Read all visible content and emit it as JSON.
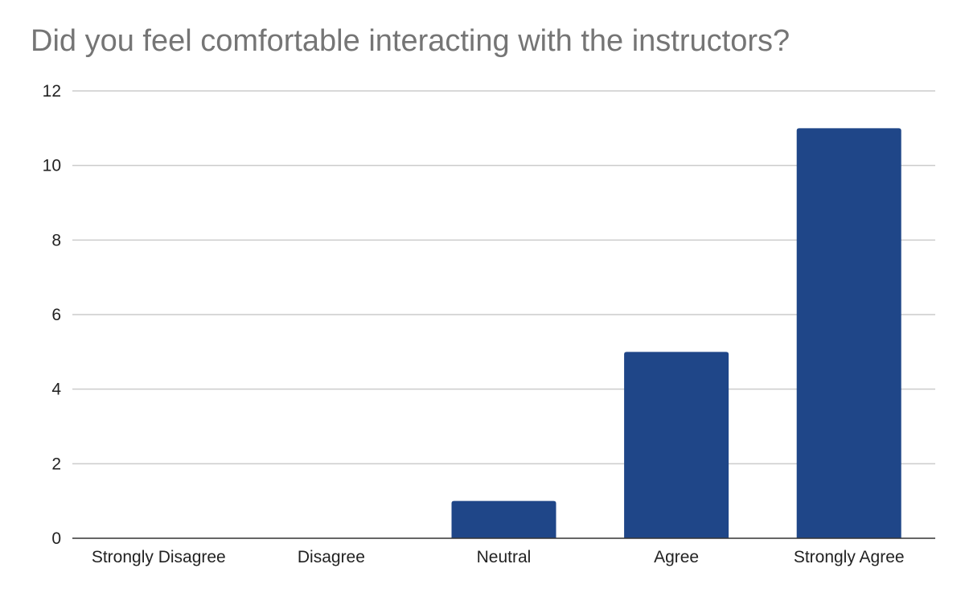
{
  "chart_data": {
    "type": "bar",
    "title": "Did you feel comfortable interacting with the instructors?",
    "categories": [
      "Strongly Disagree",
      "Disagree",
      "Neutral",
      "Agree",
      "Strongly Agree"
    ],
    "values": [
      0,
      0,
      1,
      5,
      11
    ],
    "ylim": [
      0,
      12
    ],
    "yticks": [
      "0",
      "2",
      "4",
      "6",
      "8",
      "10",
      "12"
    ],
    "grid": true,
    "colors": {
      "bar": "#1f4688",
      "grid": "#cccccc",
      "axis": "#333333",
      "title": "#757575"
    }
  }
}
